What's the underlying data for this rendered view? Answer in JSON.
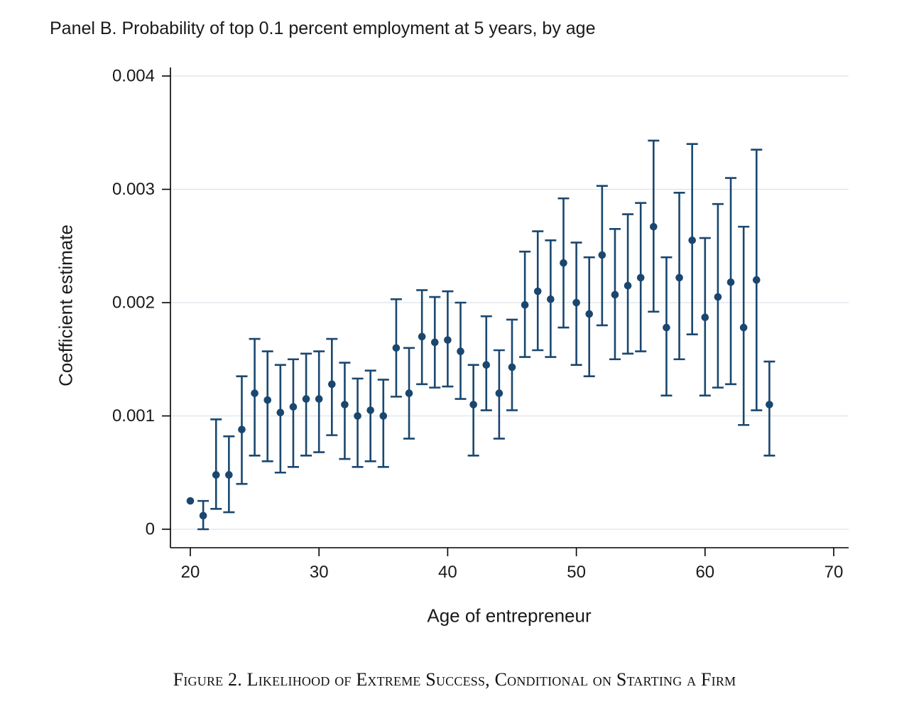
{
  "page": {
    "title": "Panel B. Probability of top 0.1 percent employment at 5 years, by age",
    "caption": "Figure 2. Likelihood of Extreme Success, Conditional on Starting a Firm"
  },
  "chart_data": {
    "type": "scatter",
    "subtype": "coefficient-plot-with-error-bars",
    "title": "Panel B. Probability of top 0.1 percent employment at 5 years, by age",
    "xlabel": "Age of entrepreneur",
    "ylabel": "Coefficient estimate",
    "xlim": [
      19,
      71
    ],
    "ylim": [
      0,
      0.004
    ],
    "x_ticks": [
      20,
      30,
      40,
      50,
      60,
      70
    ],
    "y_ticks": [
      0,
      0.001,
      0.002,
      0.003,
      0.004
    ],
    "y_tick_labels": [
      "0",
      "0.001",
      "0.002",
      "0.003",
      "0.004"
    ],
    "grid": true,
    "legend": "none",
    "marker_color": "#1a476f",
    "grid_color": "#dde3e9",
    "axis_color": "#000000",
    "x": [
      20,
      21,
      22,
      23,
      24,
      25,
      26,
      27,
      28,
      29,
      30,
      31,
      32,
      33,
      34,
      35,
      36,
      37,
      38,
      39,
      40,
      41,
      42,
      43,
      44,
      45,
      46,
      47,
      48,
      49,
      50,
      51,
      52,
      53,
      54,
      55,
      56,
      57,
      58,
      59,
      60,
      61,
      62,
      63,
      64,
      65
    ],
    "series": [
      {
        "name": "estimate",
        "values": [
          0.00025,
          0.00012,
          0.00048,
          0.00048,
          0.00088,
          0.0012,
          0.00114,
          0.00103,
          0.00108,
          0.00115,
          0.00115,
          0.00128,
          0.0011,
          0.001,
          0.00105,
          0.001,
          0.0016,
          0.0012,
          0.0017,
          0.00165,
          0.00167,
          0.00157,
          0.0011,
          0.00145,
          0.0012,
          0.00143,
          0.00198,
          0.0021,
          0.00203,
          0.00235,
          0.002,
          0.0019,
          0.00242,
          0.00207,
          0.00215,
          0.00222,
          0.00267,
          0.00178,
          0.00222,
          0.00255,
          0.00187,
          0.00205,
          0.00218,
          0.00178,
          0.0022,
          0.0011
        ]
      },
      {
        "name": "ci_low",
        "values": [
          0.00022,
          0.0,
          0.00018,
          0.00015,
          0.0004,
          0.00065,
          0.0006,
          0.0005,
          0.00055,
          0.00065,
          0.00068,
          0.00083,
          0.00062,
          0.00055,
          0.0006,
          0.00055,
          0.00117,
          0.0008,
          0.00128,
          0.00125,
          0.00126,
          0.00115,
          0.00065,
          0.00105,
          0.0008,
          0.00105,
          0.00152,
          0.00158,
          0.00152,
          0.00178,
          0.00145,
          0.00135,
          0.0018,
          0.0015,
          0.00155,
          0.00157,
          0.00192,
          0.00118,
          0.0015,
          0.00172,
          0.00118,
          0.00125,
          0.00128,
          0.00092,
          0.00105,
          0.00065
        ]
      },
      {
        "name": "ci_high",
        "values": [
          0.00028,
          0.00025,
          0.00097,
          0.00082,
          0.00135,
          0.00168,
          0.00157,
          0.00145,
          0.0015,
          0.00155,
          0.00157,
          0.00168,
          0.00147,
          0.00133,
          0.0014,
          0.00132,
          0.00203,
          0.0016,
          0.00211,
          0.00205,
          0.0021,
          0.002,
          0.00145,
          0.00188,
          0.00158,
          0.00185,
          0.00245,
          0.00263,
          0.00255,
          0.00292,
          0.00253,
          0.0024,
          0.00303,
          0.00265,
          0.00278,
          0.00288,
          0.00343,
          0.0024,
          0.00297,
          0.0034,
          0.00257,
          0.00287,
          0.0031,
          0.00267,
          0.00335,
          0.00148
        ]
      }
    ]
  }
}
